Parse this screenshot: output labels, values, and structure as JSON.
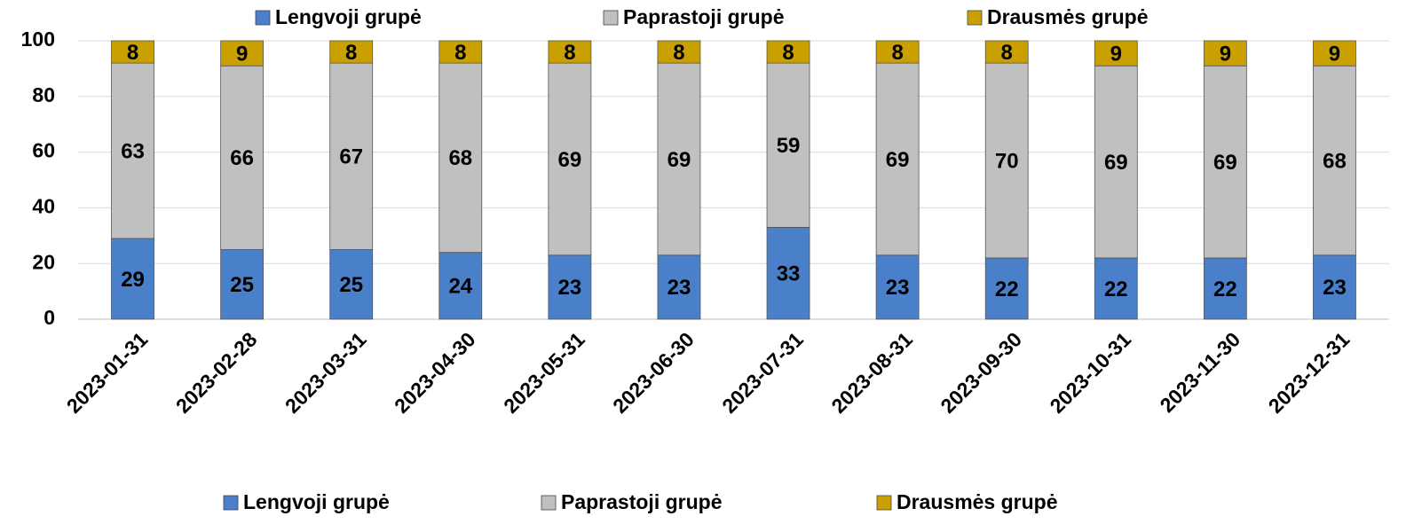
{
  "chart_data": {
    "type": "stacked_bar",
    "categories": [
      "2023-01-31",
      "2023-02-28",
      "2023-03-31",
      "2023-04-30",
      "2023-05-31",
      "2023-06-30",
      "2023-07-31",
      "2023-08-31",
      "2023-09-30",
      "2023-10-31",
      "2023-11-30",
      "2023-12-31"
    ],
    "series": [
      {
        "name": "Lengvoji grupė",
        "color": "#4a7fc9",
        "values": [
          29,
          25,
          25,
          24,
          23,
          23,
          33,
          23,
          22,
          22,
          22,
          23
        ]
      },
      {
        "name": "Paprastoji grupė",
        "color": "#c0c0c0",
        "values": [
          63,
          66,
          67,
          68,
          69,
          69,
          59,
          69,
          70,
          69,
          69,
          68
        ]
      },
      {
        "name": "Drausmės grupė",
        "color": "#c9a000",
        "values": [
          8,
          9,
          8,
          8,
          8,
          8,
          8,
          8,
          8,
          9,
          9,
          9
        ]
      }
    ],
    "ylim": [
      0,
      100
    ],
    "yticks": [
      0,
      20,
      40,
      60,
      80,
      100
    ],
    "grid": true,
    "legend": [
      "top",
      "bottom"
    ]
  }
}
